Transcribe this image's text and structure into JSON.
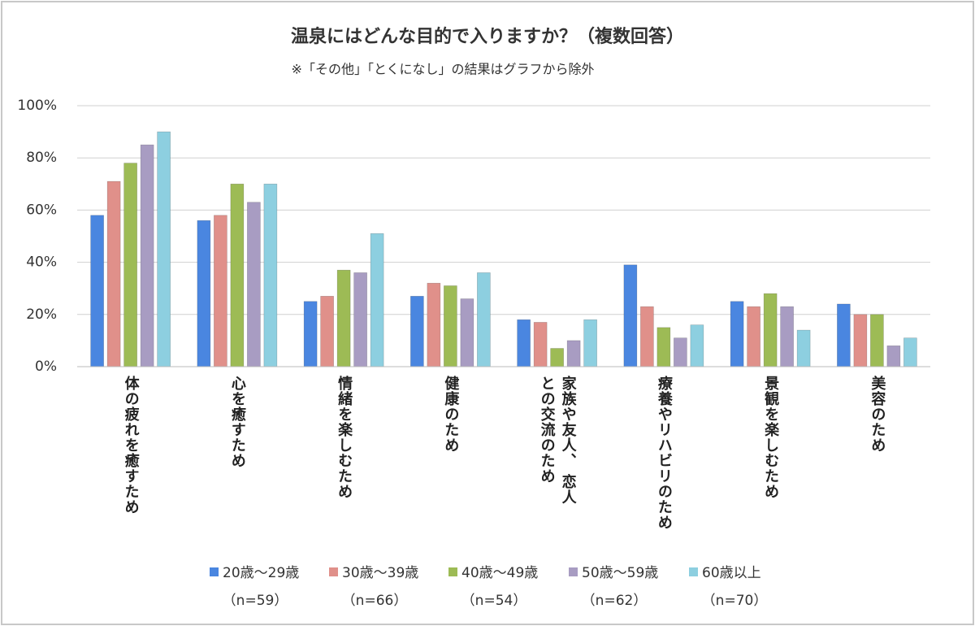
{
  "chart_data": {
    "type": "bar",
    "title": "温泉にはどんな目的で入りますか？（複数回答）",
    "subtitle": "※「その他」「とくになし」の結果はグラフから除外",
    "categories": [
      "体の疲れを癒すため",
      "心を癒すため",
      "情緒を楽しむため",
      "健康のため",
      "家族や友人、 恋人\nとの交流のため",
      "療養やリハビリのため",
      "景観を楽しむため",
      "美容のため"
    ],
    "series": [
      {
        "name": "20歳〜29歳",
        "note": "（n=59）",
        "color": "#4a86e0",
        "values": [
          58,
          56,
          25,
          27,
          18,
          39,
          25,
          24
        ]
      },
      {
        "name": "30歳〜39歳",
        "note": "（n=66）",
        "color": "#e0908a",
        "values": [
          71,
          58,
          27,
          32,
          17,
          23,
          23,
          20
        ]
      },
      {
        "name": "40歳〜49歳",
        "note": "（n=54）",
        "color": "#9dbb55",
        "values": [
          78,
          70,
          37,
          31,
          7,
          15,
          28,
          20
        ]
      },
      {
        "name": "50歳〜59歳",
        "note": "（n=62）",
        "color": "#a89cc2",
        "values": [
          85,
          63,
          36,
          26,
          10,
          11,
          23,
          8
        ]
      },
      {
        "name": "60歳以上",
        "note": "（n=70）",
        "color": "#8dcfe0",
        "values": [
          90,
          70,
          51,
          36,
          18,
          16,
          14,
          11
        ]
      }
    ],
    "ylim": [
      0,
      100
    ],
    "yticks": [
      {
        "value": 0,
        "label": "0%"
      },
      {
        "value": 20,
        "label": "20%"
      },
      {
        "value": 40,
        "label": "40%"
      },
      {
        "value": 60,
        "label": "60%"
      },
      {
        "value": 80,
        "label": "80%"
      },
      {
        "value": 100,
        "label": "100%"
      }
    ],
    "grid": true,
    "legend": "bottom"
  }
}
